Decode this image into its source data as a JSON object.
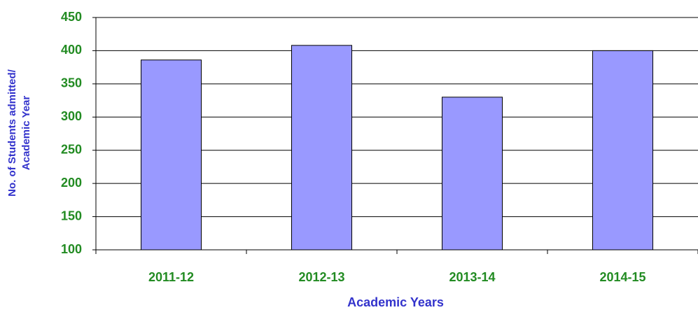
{
  "chart_data": {
    "type": "bar",
    "ylabel": [
      "No. of Students admitted/",
      "Academic Year"
    ],
    "xlabel": "Academic Years",
    "categories": [
      "2011-12",
      "2012-13",
      "2013-14",
      "2014-15"
    ],
    "values": [
      386,
      408,
      330,
      400
    ],
    "color": "#9999ff",
    "ylim": [
      100,
      450
    ],
    "yticks": [
      100,
      150,
      200,
      250,
      300,
      350,
      400,
      450
    ],
    "grid": true
  }
}
